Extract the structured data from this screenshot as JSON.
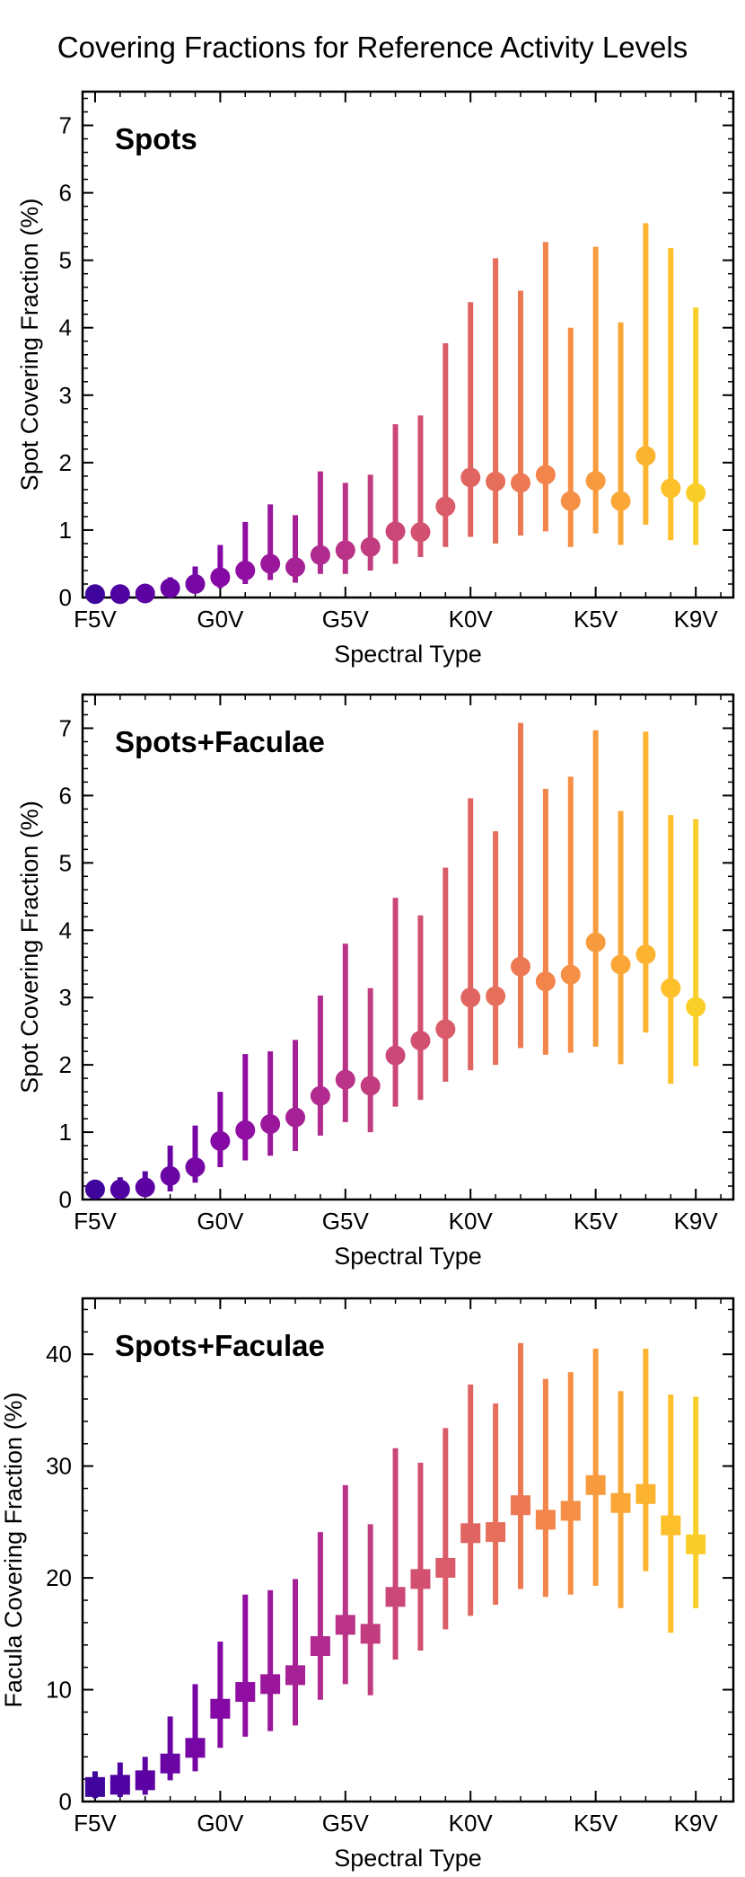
{
  "figure_title": "Covering Fractions for Reference Activity Levels",
  "chart_data": [
    {
      "type": "scatter",
      "panel_label": "Spots",
      "marker": "circle",
      "xlabel": "Spectral Type",
      "ylabel": "Spot Covering Fraction (%)",
      "ylim": [
        0,
        7.5
      ],
      "yticks": [
        0,
        1,
        2,
        3,
        4,
        5,
        6,
        7
      ],
      "xlim": [
        -0.5,
        25.5
      ],
      "xticks": [
        0,
        5,
        10,
        15,
        20,
        24
      ],
      "xticklabels": [
        "F5V",
        "G0V",
        "G5V",
        "K0V",
        "K5V",
        "K9V"
      ],
      "x": [
        0,
        1,
        2,
        3,
        4,
        5,
        6,
        7,
        8,
        9,
        10,
        11,
        12,
        13,
        14,
        15,
        16,
        17,
        18,
        19,
        20,
        21,
        22,
        23,
        24
      ],
      "values": [
        0.05,
        0.05,
        0.06,
        0.14,
        0.2,
        0.3,
        0.4,
        0.5,
        0.45,
        0.63,
        0.7,
        0.75,
        0.98,
        0.97,
        1.35,
        1.78,
        1.72,
        1.7,
        1.82,
        1.43,
        1.73,
        1.43,
        2.1,
        1.62,
        1.55
      ],
      "lower": [
        0.01,
        0.01,
        0.01,
        0.05,
        0.09,
        0.14,
        0.2,
        0.26,
        0.22,
        0.35,
        0.35,
        0.4,
        0.5,
        0.6,
        0.75,
        0.9,
        0.8,
        0.92,
        0.98,
        0.75,
        0.95,
        0.78,
        1.08,
        0.85,
        0.78
      ],
      "upper": [
        0.12,
        0.1,
        0.16,
        0.3,
        0.46,
        0.78,
        1.12,
        1.38,
        1.22,
        1.87,
        1.7,
        1.82,
        2.57,
        2.7,
        3.77,
        4.38,
        5.03,
        4.55,
        5.27,
        4.0,
        5.2,
        4.08,
        5.55,
        5.18,
        4.3
      ]
    },
    {
      "type": "scatter",
      "panel_label": "Spots+Faculae",
      "marker": "circle",
      "xlabel": "Spectral Type",
      "ylabel": "Spot Covering Fraction (%)",
      "ylim": [
        0,
        7.5
      ],
      "yticks": [
        0,
        1,
        2,
        3,
        4,
        5,
        6,
        7
      ],
      "xlim": [
        -0.5,
        25.5
      ],
      "xticks": [
        0,
        5,
        10,
        15,
        20,
        24
      ],
      "xticklabels": [
        "F5V",
        "G0V",
        "G5V",
        "K0V",
        "K5V",
        "K9V"
      ],
      "x": [
        0,
        1,
        2,
        3,
        4,
        5,
        6,
        7,
        8,
        9,
        10,
        11,
        12,
        13,
        14,
        15,
        16,
        17,
        18,
        19,
        20,
        21,
        22,
        23,
        24
      ],
      "values": [
        0.15,
        0.15,
        0.18,
        0.35,
        0.48,
        0.87,
        1.03,
        1.12,
        1.22,
        1.54,
        1.78,
        1.69,
        2.14,
        2.36,
        2.53,
        3.0,
        3.02,
        3.46,
        3.24,
        3.34,
        3.82,
        3.49,
        3.64,
        3.14,
        2.86
      ],
      "lower": [
        0.02,
        0.03,
        0.04,
        0.12,
        0.25,
        0.48,
        0.58,
        0.65,
        0.72,
        0.95,
        1.15,
        1.0,
        1.38,
        1.48,
        1.75,
        1.92,
        2.0,
        2.25,
        2.15,
        2.18,
        2.27,
        2.01,
        2.48,
        1.72,
        1.98
      ],
      "upper": [
        0.28,
        0.33,
        0.42,
        0.8,
        1.1,
        1.6,
        2.16,
        2.2,
        2.37,
        3.03,
        3.8,
        3.14,
        4.48,
        4.22,
        4.93,
        5.96,
        5.47,
        7.08,
        6.1,
        6.28,
        6.97,
        5.77,
        6.95,
        5.71,
        5.65
      ]
    },
    {
      "type": "scatter",
      "panel_label": "Spots+Faculae",
      "marker": "square",
      "xlabel": "Spectral Type",
      "ylabel": "Facula Covering Fraction (%)",
      "ylim": [
        0,
        45
      ],
      "yticks": [
        0,
        10,
        20,
        30,
        40
      ],
      "xlim": [
        -0.5,
        25.5
      ],
      "xticks": [
        0,
        5,
        10,
        15,
        20,
        24
      ],
      "xticklabels": [
        "F5V",
        "G0V",
        "G5V",
        "K0V",
        "K5V",
        "K9V"
      ],
      "x": [
        0,
        1,
        2,
        3,
        4,
        5,
        6,
        7,
        8,
        9,
        10,
        11,
        12,
        13,
        14,
        15,
        16,
        17,
        18,
        19,
        20,
        21,
        22,
        23,
        24
      ],
      "values": [
        1.3,
        1.5,
        1.9,
        3.4,
        4.8,
        8.3,
        9.8,
        10.5,
        11.3,
        13.9,
        15.8,
        15.0,
        18.3,
        19.9,
        20.9,
        24.0,
        24.1,
        26.5,
        25.2,
        26.0,
        28.3,
        26.7,
        27.5,
        24.7,
        23.0
      ],
      "lower": [
        0.3,
        0.4,
        0.6,
        1.9,
        2.7,
        4.8,
        5.8,
        6.3,
        6.8,
        9.1,
        10.5,
        9.5,
        12.7,
        13.5,
        15.4,
        16.6,
        17.6,
        19.0,
        18.3,
        18.5,
        19.3,
        17.3,
        20.6,
        15.1,
        17.3
      ],
      "upper": [
        2.7,
        3.5,
        4.0,
        7.6,
        10.5,
        14.3,
        18.5,
        18.9,
        19.9,
        24.1,
        28.3,
        24.8,
        31.6,
        30.3,
        33.4,
        37.3,
        35.6,
        41.0,
        37.8,
        38.4,
        40.5,
        36.7,
        40.5,
        36.4,
        36.2
      ]
    }
  ]
}
